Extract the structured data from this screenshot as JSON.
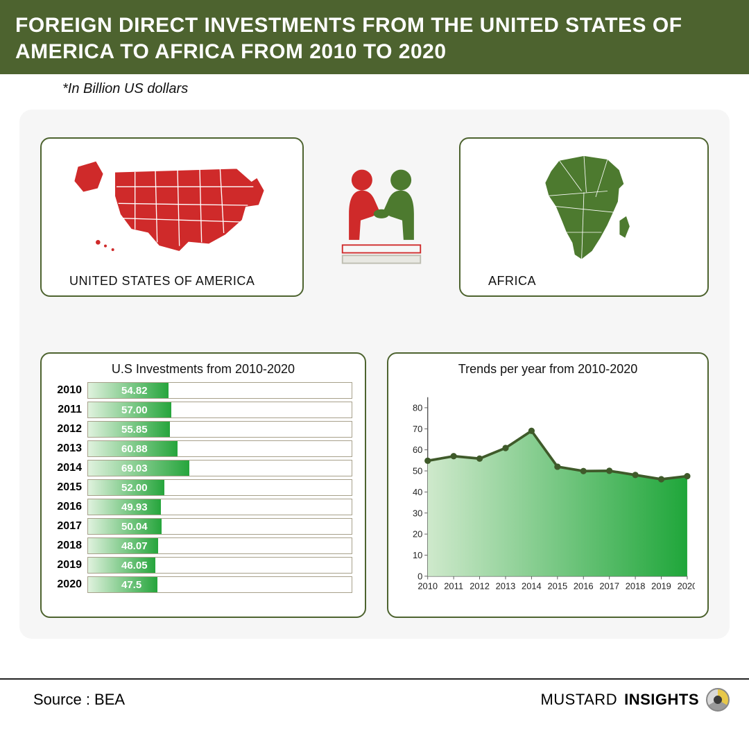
{
  "header": {
    "title_line": "FOREIGN DIRECT INVESTMENTS FROM THE UNITED STATES OF AMERICA TO AFRICA FROM 2010 TO 2020",
    "subtitle": "*In Billion US dollars",
    "bg_color": "#4d632f",
    "text_color": "#ffffff"
  },
  "maps": {
    "usa_label": "UNITED STATES OF AMERICA",
    "usa_color": "#cf2a2a",
    "africa_label": "AFRICA",
    "africa_color": "#4d7a2f",
    "border_color": "#4d632f"
  },
  "handshake": {
    "left_color": "#cf2a2a",
    "right_color": "#4d7a2f"
  },
  "bar_chart": {
    "type": "bar",
    "title": "U.S Investments from 2010-2020",
    "years": [
      "2010",
      "2011",
      "2012",
      "2013",
      "2014",
      "2015",
      "2016",
      "2017",
      "2018",
      "2019",
      "2020"
    ],
    "values": [
      54.82,
      57.0,
      55.85,
      60.88,
      69.03,
      52.0,
      49.93,
      50.04,
      48.07,
      46.05,
      47.5
    ],
    "value_labels": [
      "54.82",
      "57.00",
      "55.85",
      "60.88",
      "69.03",
      "52.00",
      "49.93",
      "50.04",
      "48.07",
      "46.05",
      "47.5"
    ],
    "xmax": 180,
    "bar_fill_gradient": [
      "#e0f2de",
      "#26a53c"
    ],
    "track_border": "#a7a08a",
    "value_text_color": "#ffffff",
    "year_fontsize": 16,
    "value_fontsize": 15
  },
  "line_chart": {
    "type": "area",
    "title": "Trends per year from 2010-2020",
    "x_labels": [
      "2010",
      "2011",
      "2012",
      "2013",
      "2014",
      "2015",
      "2016",
      "2017",
      "2018",
      "2019",
      "2020"
    ],
    "values": [
      54.82,
      57.0,
      55.85,
      60.88,
      69.03,
      52.0,
      49.93,
      50.04,
      48.07,
      46.05,
      47.5
    ],
    "ylim": [
      0,
      85
    ],
    "ytick_step": 10,
    "yticks": [
      0,
      10,
      20,
      30,
      40,
      50,
      60,
      70,
      80
    ],
    "area_gradient": [
      "#cfe9cc",
      "#1fa63a"
    ],
    "line_color": "#3f5a2a",
    "marker_color": "#3f5a2a",
    "marker_radius": 5,
    "line_width": 4,
    "axis_color": "#555555",
    "label_fontsize": 14
  },
  "footer": {
    "source": "Source : BEA",
    "brand_thin": "MUSTARD ",
    "brand_bold": "INSIGHTS"
  },
  "layout": {
    "page_bg": "#ffffff",
    "panel_bg": "#f6f6f6",
    "panel_radius": 18
  }
}
